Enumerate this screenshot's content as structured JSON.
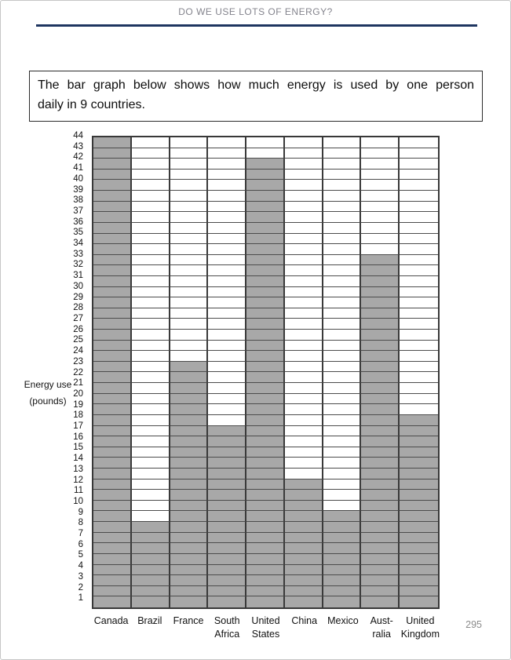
{
  "page": {
    "header_title": "DO WE USE LOTS OF ENERGY?",
    "rule_color": "#1e3560",
    "page_number": "295"
  },
  "instruction": {
    "line1": "The bar graph below shows how much energy is used by one person",
    "line2": "daily in 9 countries."
  },
  "chart_data": {
    "type": "bar",
    "title": "",
    "categories": [
      "Canada",
      "Brazil",
      "France",
      "South\nAfrica",
      "United\nStates",
      "China",
      "Mexico",
      "Aust-\nralia",
      "United\nKingdom"
    ],
    "values": [
      44,
      8,
      23,
      17,
      42,
      12,
      9,
      33,
      18
    ],
    "xlabel": "",
    "ylabel": "Energy use\n(pounds)",
    "ylim": [
      0,
      44
    ],
    "ytick_step": 1,
    "grid": true,
    "bar_color": "#a8a8a8",
    "grid_color": "#4c4c4c"
  }
}
